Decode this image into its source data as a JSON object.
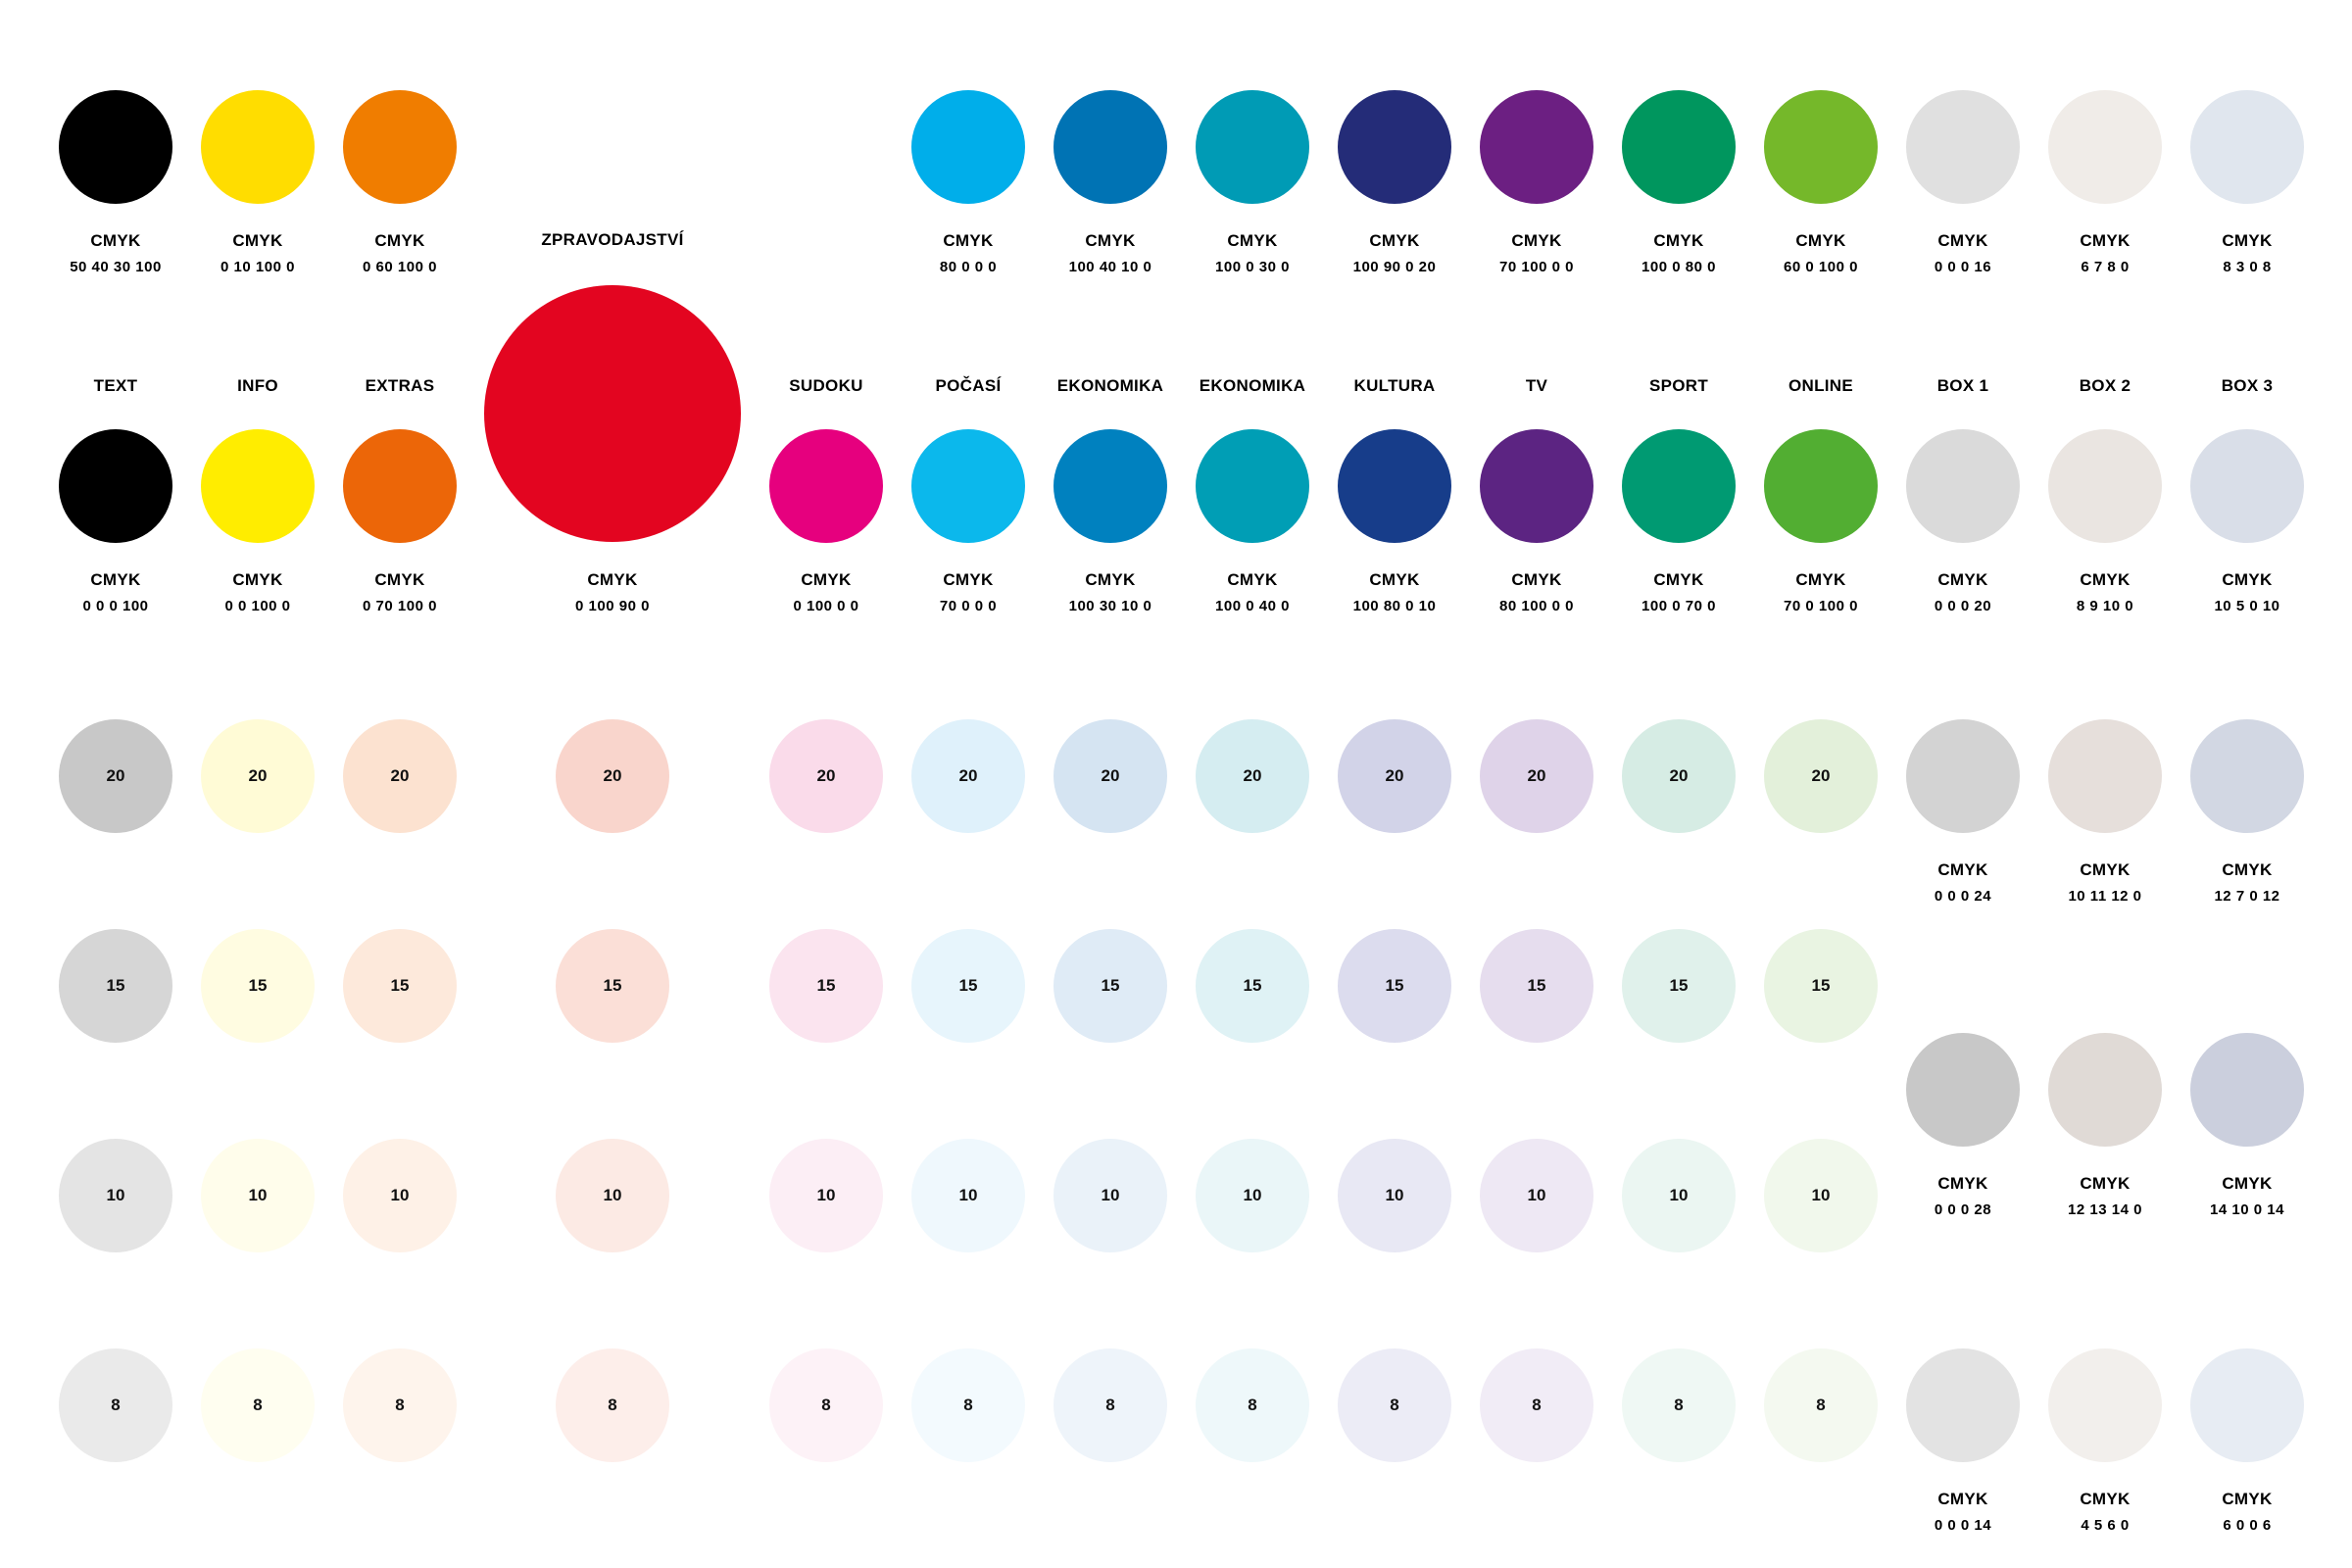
{
  "rows": {
    "top": [
      {
        "id": "text-top",
        "color": "#000000",
        "cmyk_label": "CMYK",
        "cmyk": "50 40 30 100"
      },
      {
        "id": "info-top",
        "color": "#FFDD00",
        "cmyk_label": "CMYK",
        "cmyk": "0 10 100 0"
      },
      {
        "id": "extras-top",
        "color": "#F07D00",
        "cmyk_label": "CMYK",
        "cmyk": "0 60 100 0"
      },
      {
        "id": "pocasi-top",
        "color": "#00AEEA",
        "cmyk_label": "CMYK",
        "cmyk": "80 0 0 0"
      },
      {
        "id": "ekonomika1-top",
        "color": "#0073B4",
        "cmyk_label": "CMYK",
        "cmyk": "100 40 10 0"
      },
      {
        "id": "ekonomika2-top",
        "color": "#009BB5",
        "cmyk_label": "CMYK",
        "cmyk": "100 0 30 0"
      },
      {
        "id": "kultura-top",
        "color": "#242C78",
        "cmyk_label": "CMYK",
        "cmyk": "100 90 0 20"
      },
      {
        "id": "tv-top",
        "color": "#6C1F82",
        "cmyk_label": "CMYK",
        "cmyk": "70 100 0 0"
      },
      {
        "id": "sport-top",
        "color": "#00965E",
        "cmyk_label": "CMYK",
        "cmyk": "100 0 80 0"
      },
      {
        "id": "online-top",
        "color": "#75B82A",
        "cmyk_label": "CMYK",
        "cmyk": "60 0 100 0"
      },
      {
        "id": "box1-top",
        "color": "#E0E0E0",
        "cmyk_label": "CMYK",
        "cmyk": "0 0 0 16"
      },
      {
        "id": "box2-top",
        "color": "#F0ECE8",
        "cmyk_label": "CMYK",
        "cmyk": "6 7 8 0"
      },
      {
        "id": "box3-top",
        "color": "#E0E6EE",
        "cmyk_label": "CMYK",
        "cmyk": "8 3 0 8"
      }
    ],
    "main": [
      {
        "id": "text",
        "name": "TEXT",
        "color": "#000000",
        "cmyk_label": "CMYK",
        "cmyk": "0 0 0 100"
      },
      {
        "id": "info",
        "name": "INFO",
        "color": "#FFED00",
        "cmyk_label": "CMYK",
        "cmyk": "0 0 100 0"
      },
      {
        "id": "extras",
        "name": "EXTRAS",
        "color": "#EC6608",
        "cmyk_label": "CMYK",
        "cmyk": "0 70 100 0"
      },
      {
        "id": "zpravodajstvi",
        "name": "ZPRAVODAJSTVÍ",
        "color": "#E30520",
        "cmyk_label": "CMYK",
        "cmyk": "0 100 90 0"
      },
      {
        "id": "sudoku",
        "name": "SUDOKU",
        "color": "#E6007E",
        "cmyk_label": "CMYK",
        "cmyk": "0 100 0 0"
      },
      {
        "id": "pocasi",
        "name": "POČASÍ",
        "color": "#0BB8EC",
        "cmyk_label": "CMYK",
        "cmyk": "70 0 0 0"
      },
      {
        "id": "ekonomika1",
        "name": "EKONOMIKA",
        "color": "#0081BF",
        "cmyk_label": "CMYK",
        "cmyk": "100 30 10 0"
      },
      {
        "id": "ekonomika2",
        "name": "EKONOMIKA",
        "color": "#009EB5",
        "cmyk_label": "CMYK",
        "cmyk": "100 0 40 0"
      },
      {
        "id": "kultura",
        "name": "KULTURA",
        "color": "#173D8A",
        "cmyk_label": "CMYK",
        "cmyk": "100 80 0 10"
      },
      {
        "id": "tv",
        "name": "TV",
        "color": "#5C2482",
        "cmyk_label": "CMYK",
        "cmyk": "80 100 0 0"
      },
      {
        "id": "sport",
        "name": "SPORT",
        "color": "#009A72",
        "cmyk_label": "CMYK",
        "cmyk": "100 0 70 0"
      },
      {
        "id": "online",
        "name": "ONLINE",
        "color": "#52AE32",
        "cmyk_label": "CMYK",
        "cmyk": "70 0 100 0"
      },
      {
        "id": "box1",
        "name": "BOX 1",
        "color": "#DADADA",
        "cmyk_label": "CMYK",
        "cmyk": "0 0 0 20"
      },
      {
        "id": "box2",
        "name": "BOX 2",
        "color": "#EAE5E1",
        "cmyk_label": "CMYK",
        "cmyk": "8 9 10 0"
      },
      {
        "id": "box3",
        "name": "BOX 3",
        "color": "#D9DEE8",
        "cmyk_label": "CMYK",
        "cmyk": "10 5 0 10"
      }
    ]
  },
  "tints": {
    "levels": [
      "20",
      "15",
      "10",
      "8"
    ],
    "columns": [
      {
        "id": "text",
        "colors": [
          "#C8C8C8",
          "#D6D6D6",
          "#E4E4E4",
          "#EAEAEA"
        ]
      },
      {
        "id": "info",
        "colors": [
          "#FFFBD6",
          "#FFFCE1",
          "#FFFDEB",
          "#FFFEF0"
        ]
      },
      {
        "id": "extras",
        "colors": [
          "#FCE2D0",
          "#FDE9DB",
          "#FEF1E7",
          "#FEF4EC"
        ]
      },
      {
        "id": "zpravodajstvi",
        "colors": [
          "#F9D5CC",
          "#FBDFD7",
          "#FCEAE4",
          "#FDEEEA"
        ]
      },
      {
        "id": "sudoku",
        "colors": [
          "#FADBEA",
          "#FBE4EF",
          "#FCEEF5",
          "#FDF2F7"
        ]
      },
      {
        "id": "pocasi",
        "colors": [
          "#DFF1FB",
          "#E7F5FC",
          "#EFF8FD",
          "#F3FAFE"
        ]
      },
      {
        "id": "ekonomika1",
        "colors": [
          "#D5E4F2",
          "#DFEBF6",
          "#EAF2F9",
          "#EEF4FA"
        ]
      },
      {
        "id": "ekonomika2",
        "colors": [
          "#D5EDF1",
          "#DFF2F5",
          "#EAF6F8",
          "#EEF8FA"
        ]
      },
      {
        "id": "kultura",
        "colors": [
          "#D2D3E8",
          "#DCDCEE",
          "#E8E8F4",
          "#ECECF6"
        ]
      },
      {
        "id": "tv",
        "colors": [
          "#DFD3E9",
          "#E6DDEE",
          "#EEE8F4",
          "#F1ECF6"
        ]
      },
      {
        "id": "sport",
        "colors": [
          "#D6ECE4",
          "#E0F1EB",
          "#EBF6F2",
          "#EFF8F4"
        ]
      },
      {
        "id": "online",
        "colors": [
          "#E3F0DA",
          "#E9F4E2",
          "#F1F8EC",
          "#F4F9F0"
        ]
      }
    ]
  },
  "box_shades": [
    {
      "id": "box-shade-1",
      "colors": [
        "#D3D3D3",
        "#C8C8C8",
        "#E3E3E3"
      ],
      "cmyk_label": "CMYK",
      "cmyk": [
        "0 0 0 24",
        "0 0 0 28",
        "0 0 0 14"
      ]
    },
    {
      "id": "box-shade-2",
      "colors": [
        "#E6DFDB",
        "#E0DAD6",
        "#F2EFEC"
      ],
      "cmyk_label": "CMYK",
      "cmyk": [
        "10 11 12 0",
        "12 13 14 0",
        "4 5 6  0"
      ]
    },
    {
      "id": "box-shade-3",
      "colors": [
        "#D2D7E3",
        "#CBCFDD",
        "#E7ECF3"
      ],
      "cmyk_label": "CMYK",
      "cmyk": [
        "12 7 0 12",
        "14 10 0 14",
        "6 0 0 6"
      ]
    }
  ]
}
